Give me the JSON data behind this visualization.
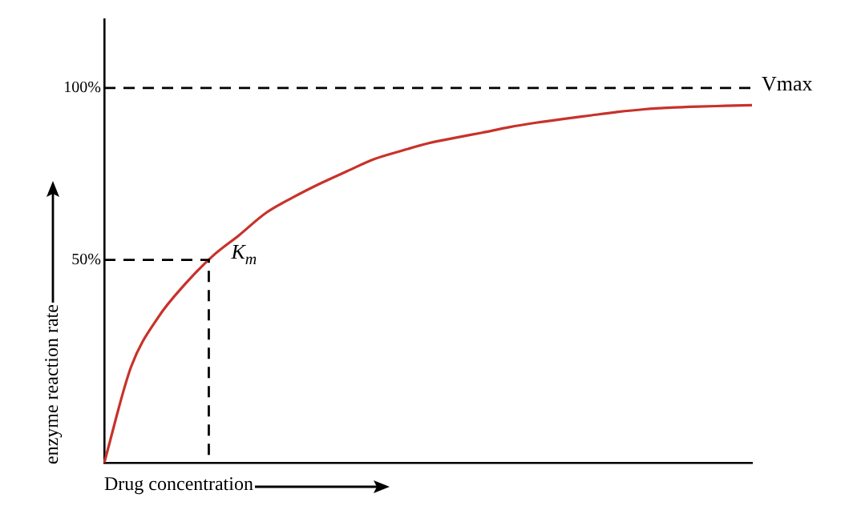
{
  "chart_data": {
    "type": "line",
    "xlabel": "Drug concentration",
    "ylabel": "enzyme reaction rate",
    "categories": [
      null,
      null,
      null,
      null,
      null,
      null,
      null,
      null,
      null,
      null,
      null,
      null,
      null,
      null,
      null,
      null,
      null,
      null,
      null,
      null,
      null,
      null,
      null,
      null,
      null
    ],
    "ylim": [
      -9,
      120
    ],
    "yticks": [
      {
        "value": 50,
        "label": "50%"
      },
      {
        "value": 100,
        "label": "100%"
      }
    ],
    "tick_labels": "y",
    "grid": false,
    "legend": false,
    "series": [
      {
        "color": "#c8322a",
        "values": [
          -9,
          19,
          33.3,
          43,
          51,
          57.2,
          63.7,
          68.2,
          72.2,
          75.8,
          79.3,
          81.7,
          83.9,
          85.5,
          87,
          88.6,
          89.9,
          91,
          92,
          93,
          93.8,
          94.3,
          94.6,
          94.8,
          95
        ],
        "marker": "none",
        "line_style": "solid"
      }
    ],
    "ref_lines": [
      {
        "axis": "y",
        "value": 100,
        "label": "Vmax",
        "color": "#000000",
        "line_style": "dashed"
      },
      {
        "axis": "y",
        "value": 50,
        "color": "#000000",
        "line_style": "dashed"
      }
    ],
    "annotations": [
      "K$_{m}$"
    ]
  }
}
